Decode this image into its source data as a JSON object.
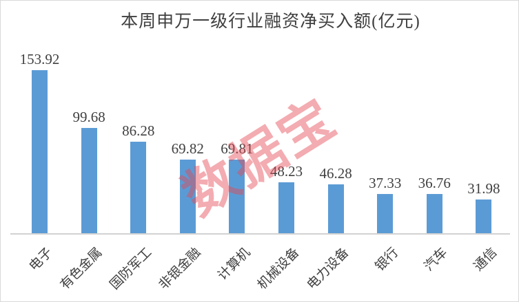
{
  "title": "本周申万一级行业融资净买入额(亿元)",
  "watermark": "数据宝",
  "colors": {
    "bar": "#5b9bd5",
    "title_text": "#3f3f3f",
    "label_text": "#404040",
    "axis_line": "#d2d2d2",
    "border": "#d9d9d9",
    "watermark": "rgba(228,70,82,0.45)",
    "background": "#ffffff"
  },
  "chart_data": {
    "type": "bar",
    "title": "本周申万一级行业融资净买入额(亿元)",
    "categories": [
      "电子",
      "有色金属",
      "国防军工",
      "非银金融",
      "计算机",
      "机械设备",
      "电力设备",
      "银行",
      "汽车",
      "通信"
    ],
    "values": [
      153.92,
      99.68,
      86.28,
      69.82,
      69.81,
      48.23,
      46.28,
      37.33,
      36.76,
      31.98
    ],
    "xlabel": "",
    "ylabel": "",
    "ylim": [
      0,
      160
    ],
    "grid": false,
    "legend": false,
    "data_labels": true,
    "data_label_position": "above-bar",
    "category_label_rotation_deg": -45,
    "bar_color": "#5b9bd5",
    "watermark_text": "数据宝"
  }
}
